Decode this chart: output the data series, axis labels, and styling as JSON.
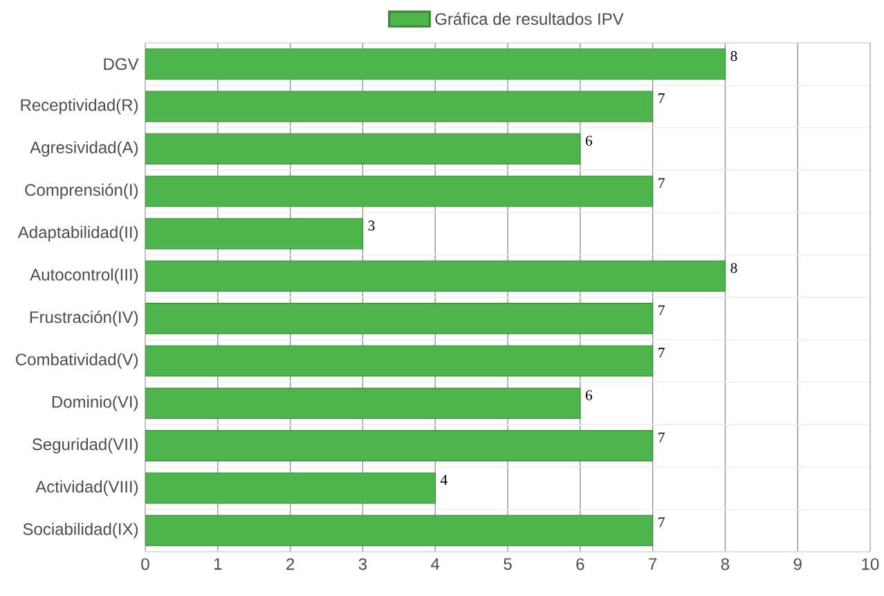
{
  "chart_data": {
    "type": "bar",
    "orientation": "horizontal",
    "categories": [
      "DGV",
      "Receptividad(R)",
      "Agresividad(A)",
      "Comprensión(I)",
      "Adaptabilidad(II)",
      "Autocontrol(III)",
      "Frustración(IV)",
      "Combatividad(V)",
      "Dominio(VI)",
      "Seguridad(VII)",
      "Actividad(VIII)",
      "Sociabilidad(IX)"
    ],
    "series": [
      {
        "name": "Gráfica de resultados IPV",
        "color": "#4db54b",
        "values": [
          8,
          7,
          6,
          7,
          3,
          8,
          7,
          7,
          6,
          7,
          4,
          7
        ]
      }
    ],
    "xlim": [
      0,
      10
    ],
    "xticks": [
      0,
      1,
      2,
      3,
      4,
      5,
      6,
      7,
      8,
      9,
      10
    ],
    "grid": true,
    "legend": "top",
    "data_labels": true
  }
}
